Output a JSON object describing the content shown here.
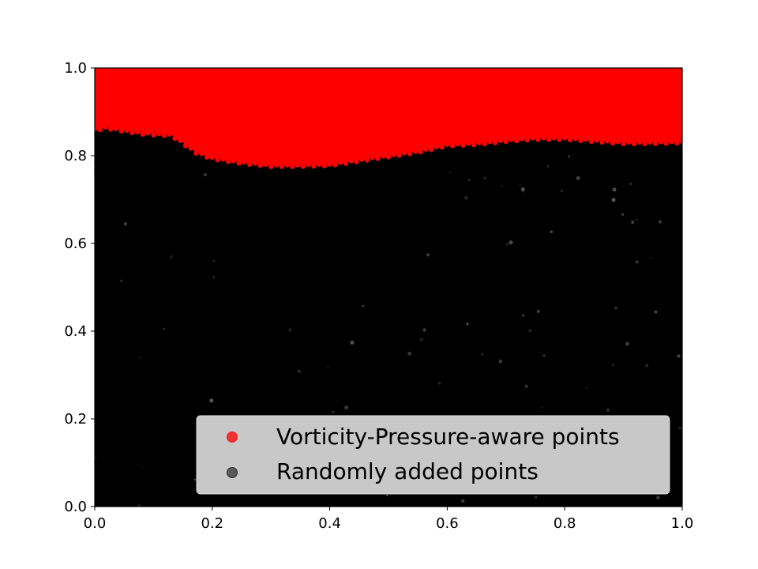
{
  "chart_data": {
    "type": "scatter",
    "title": "",
    "xlabel": "",
    "ylabel": "",
    "xlim": [
      0.0,
      1.0
    ],
    "ylim": [
      0.0,
      1.0
    ],
    "xticks": [
      "0.0",
      "0.2",
      "0.4",
      "0.6",
      "0.8",
      "1.0"
    ],
    "yticks": [
      "0.0",
      "0.2",
      "0.4",
      "0.6",
      "0.8",
      "1.0"
    ],
    "grid": false,
    "legend_position": "lower right",
    "series": [
      {
        "name": "Vorticity-Pressure-aware points",
        "color": "#ff0000",
        "marker": "circle",
        "region": "fills the domain above the boundary curve up to y = 1.0",
        "boundary": {
          "x": [
            0.0,
            0.02,
            0.05,
            0.08,
            0.1,
            0.13,
            0.15,
            0.17,
            0.2,
            0.25,
            0.3,
            0.35,
            0.4,
            0.45,
            0.5,
            0.55,
            0.6,
            0.65,
            0.7,
            0.75,
            0.8,
            0.85,
            0.9,
            0.95,
            1.0
          ],
          "y": [
            0.86,
            0.865,
            0.858,
            0.852,
            0.85,
            0.848,
            0.83,
            0.81,
            0.795,
            0.785,
            0.778,
            0.778,
            0.78,
            0.79,
            0.8,
            0.81,
            0.825,
            0.828,
            0.835,
            0.84,
            0.84,
            0.835,
            0.83,
            0.83,
            0.832
          ]
        }
      },
      {
        "name": "Randomly added points",
        "color": "#000000",
        "marker": "circle",
        "region": "fills the domain below the boundary curve down to y = 0.0"
      }
    ]
  }
}
